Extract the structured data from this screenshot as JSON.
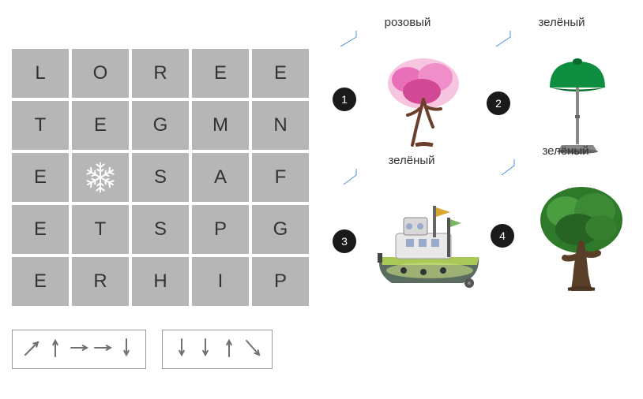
{
  "grid": {
    "rows": [
      [
        "L",
        "O",
        "R",
        "E",
        "E"
      ],
      [
        "T",
        "E",
        "G",
        "M",
        "N"
      ],
      [
        "E",
        "*",
        "S",
        "A",
        "F"
      ],
      [
        "E",
        "T",
        "S",
        "P",
        "G"
      ],
      [
        "E",
        "R",
        "H",
        "I",
        "P"
      ]
    ],
    "cell_bg": "#b6b6b6",
    "cell_fg": "#333333",
    "snowflake_color": "#ffffff"
  },
  "arrow_boxes": [
    {
      "arrows": [
        "ne",
        "n",
        "e",
        "e",
        "s"
      ]
    },
    {
      "arrows": [
        "s",
        "s",
        "n",
        "se"
      ]
    }
  ],
  "items": [
    {
      "num": "1",
      "label": "розовый",
      "type": "pink-tree"
    },
    {
      "num": "2",
      "label": "зелёный",
      "type": "green-lamp"
    },
    {
      "num": "3",
      "label": "зелёный",
      "type": "ship"
    },
    {
      "num": "4",
      "label": "зелёный",
      "type": "green-tree"
    }
  ],
  "colors": {
    "pink": "#e96fb8",
    "pink_dark": "#d14894",
    "brown": "#6b3f2a",
    "green": "#0e8f3f",
    "green_dark": "#0a6b2f",
    "tree_green": "#2f7a2a",
    "tree_green_light": "#4a9e3f",
    "lamp_stem": "#888888",
    "ship_hull": "#5a6b5f",
    "ship_body": "#a8c957",
    "ship_cabin": "#e8e8e8",
    "arrow": "#707070"
  }
}
